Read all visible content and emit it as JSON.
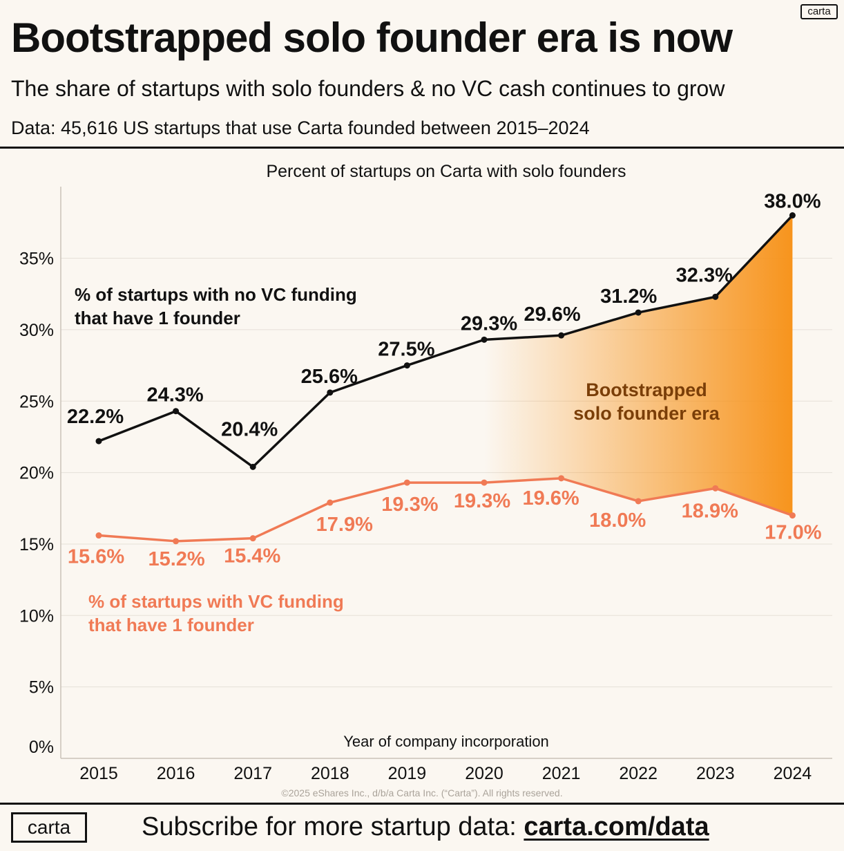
{
  "header": {
    "brand_badge": "carta",
    "title": "Bootstrapped solo founder era is now",
    "subtitle": "The share of startups with solo founders & no VC cash continues to grow",
    "source": "Data: 45,616 US startups that use Carta founded between 2015–2024"
  },
  "footer": {
    "copyright": "©2025 eShares Inc., d/b/a Carta Inc. (“Carta”). All rights reserved.",
    "logo": "carta",
    "cta_text": "Subscribe for more startup data: ",
    "cta_link": "carta.com/data"
  },
  "colors": {
    "background": "#fbf7f1",
    "series_no_vc": "#111111",
    "series_vc": "#f07a55",
    "era_fill": "#f7941d",
    "era_text": "#7a3e08",
    "grid": "#e6e0d8"
  },
  "chart_data": {
    "type": "line",
    "title": "Percent of startups on Carta with solo founders",
    "xlabel": "Year of company incorporation",
    "ylabel": "",
    "x": [
      "2015",
      "2016",
      "2017",
      "2018",
      "2019",
      "2020",
      "2021",
      "2022",
      "2023",
      "2024"
    ],
    "ylim": [
      0,
      38
    ],
    "yticks": [
      0,
      5,
      10,
      15,
      20,
      25,
      30,
      35
    ],
    "ytick_labels": [
      "0%",
      "5%",
      "10%",
      "15%",
      "20%",
      "25%",
      "30%",
      "35%"
    ],
    "grid": true,
    "series": [
      {
        "name": "% of startups with no VC funding that have 1 founder",
        "name_lines": [
          "% of startups with no VC funding",
          "that have 1 founder"
        ],
        "color": "#111111",
        "values": [
          22.2,
          24.3,
          20.4,
          25.6,
          27.5,
          29.3,
          29.6,
          31.2,
          32.3,
          38.0
        ],
        "labels": [
          "22.2%",
          "24.3%",
          "20.4%",
          "25.6%",
          "27.5%",
          "29.3%",
          "29.6%",
          "31.2%",
          "32.3%",
          "38.0%"
        ]
      },
      {
        "name": "% of startups with VC funding that have 1 founder",
        "name_lines": [
          "% of startups with VC funding",
          "that have 1 founder"
        ],
        "color": "#f07a55",
        "values": [
          15.6,
          15.2,
          15.4,
          17.9,
          19.3,
          19.3,
          19.6,
          18.0,
          18.9,
          17.0
        ],
        "labels": [
          "15.6%",
          "15.2%",
          "15.4%",
          "17.9%",
          "19.3%",
          "19.3%",
          "19.6%",
          "18.0%",
          "18.9%",
          "17.0%"
        ]
      }
    ],
    "annotation": {
      "lines": [
        "Bootstrapped",
        "solo founder era"
      ],
      "from_year": "2020",
      "to_year": "2024"
    }
  }
}
